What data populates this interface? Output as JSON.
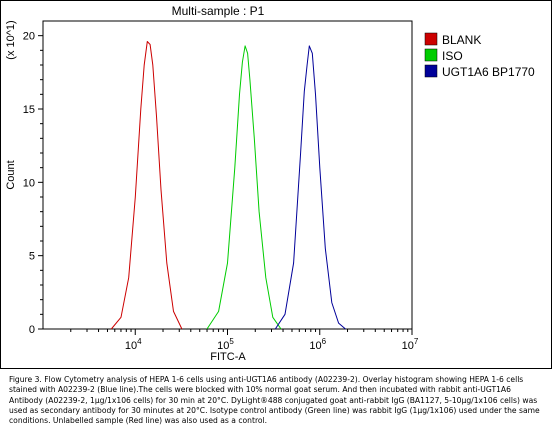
{
  "chart_data": {
    "type": "line",
    "title": "Multi-sample : P1",
    "xlabel": "FITC-A",
    "ylabel": "Count",
    "y_multiplier_label": "(x 10^1)",
    "x_scale": "log",
    "xlim": [
      1000,
      10000000
    ],
    "ylim": [
      0,
      210
    ],
    "x_ticks": [
      {
        "value": 10000,
        "base": "10",
        "exp": "4"
      },
      {
        "value": 100000,
        "base": "10",
        "exp": "5"
      },
      {
        "value": 1000000,
        "base": "10",
        "exp": "6"
      },
      {
        "value": 10000000,
        "base": "10",
        "exp": "7"
      }
    ],
    "y_ticks": [
      {
        "value": 0,
        "label": "0"
      },
      {
        "value": 50,
        "label": "5"
      },
      {
        "value": 100,
        "label": "10"
      },
      {
        "value": 150,
        "label": "15"
      },
      {
        "value": 200,
        "label": "20"
      }
    ],
    "legend_position": "right",
    "series": [
      {
        "name": "BLANK",
        "color": "#cc0000",
        "x": [
          5500,
          7000,
          8500,
          10000,
          11500,
          12500,
          13500,
          14500,
          15500,
          17000,
          19000,
          22000,
          26000,
          32000
        ],
        "y": [
          0,
          8,
          35,
          90,
          150,
          180,
          196,
          194,
          180,
          145,
          95,
          45,
          12,
          0
        ]
      },
      {
        "name": "ISO",
        "color": "#00cc00",
        "x": [
          60000,
          80000,
          100000,
          120000,
          135000,
          145000,
          155000,
          165000,
          175000,
          195000,
          220000,
          260000,
          310000,
          380000
        ],
        "y": [
          0,
          12,
          45,
          110,
          160,
          182,
          193,
          188,
          170,
          130,
          80,
          35,
          8,
          0
        ]
      },
      {
        "name": "UGT1A6 BP1770",
        "color": "#000099",
        "x": [
          330000,
          420000,
          520000,
          620000,
          680000,
          730000,
          770000,
          830000,
          900000,
          1000000,
          1150000,
          1350000,
          1600000,
          1900000
        ],
        "y": [
          0,
          10,
          45,
          120,
          162,
          180,
          193,
          188,
          160,
          110,
          55,
          18,
          4,
          0
        ]
      }
    ]
  },
  "caption": "Figure 3. Flow Cytometry analysis of HEPA 1-6 cells using anti-UGT1A6 antibody (A02239-2).  Overlay histogram showing HEPA 1-6 cells stained with A02239-2 (Blue line).The cells were blocked with 10% normal goat serum. And then incubated with rabbit anti-UGT1A6 Antibody (A02239-2, 1µg/1x106 cells) for 30 min at 20°C. DyLight®488 conjugated goat anti-rabbit IgG (BA1127, 5-10µg/1x106 cells) was used as secondary antibody for 30 minutes at 20°C. Isotype control antibody (Green line) was rabbit IgG (1µg/1x106) used under the same conditions. Unlabelled sample (Red line) was also used as a control."
}
